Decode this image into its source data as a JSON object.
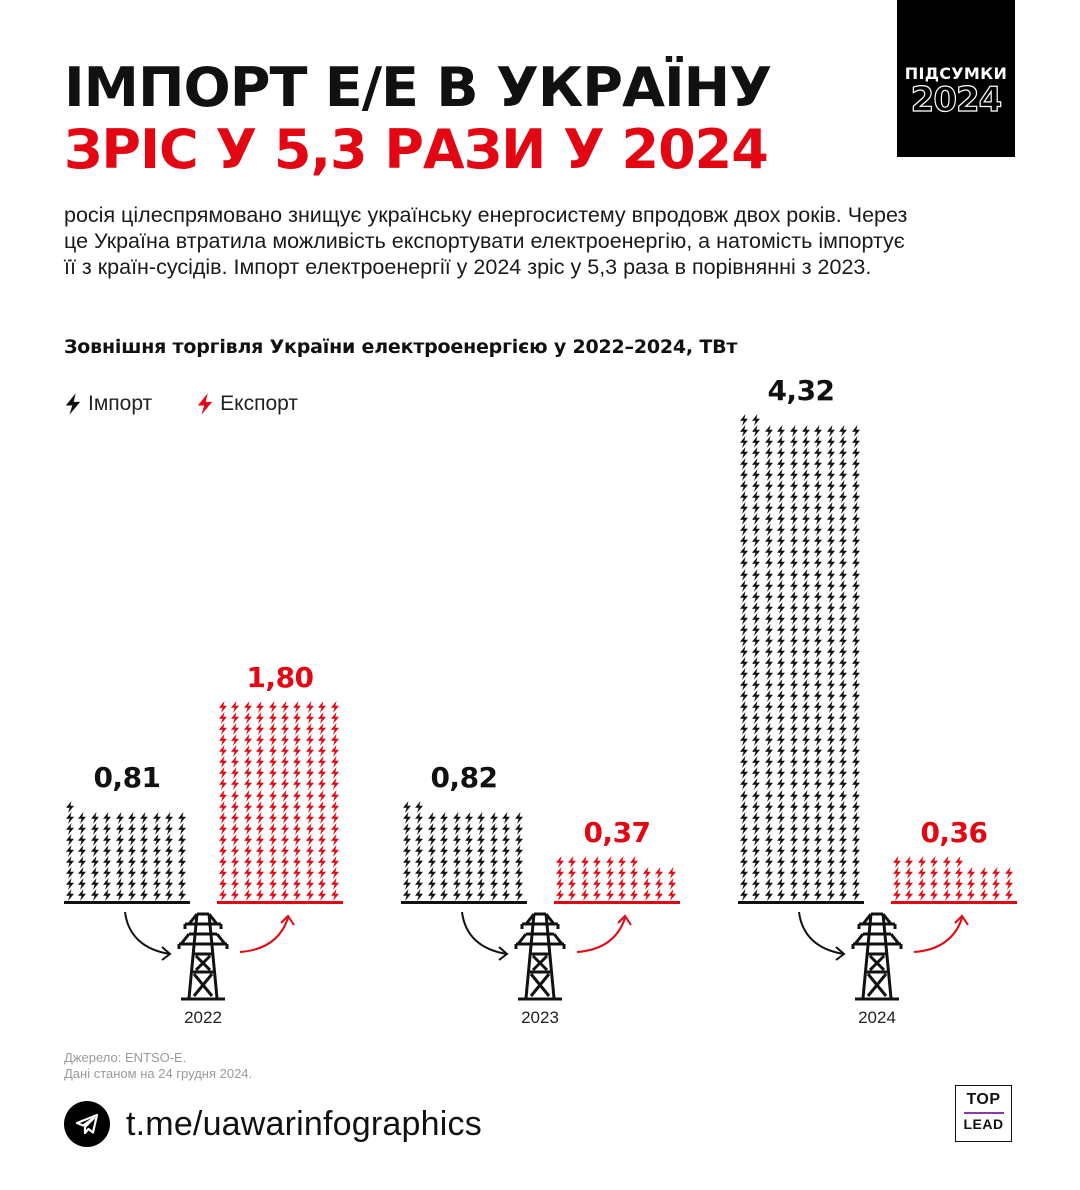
{
  "header": {
    "title_line1": "ІМПОРТ Е/Е В УКРАЇНУ",
    "title_line2": "ЗРІС У 5,3 РАЗИ У 2024",
    "badge_label": "ПІДСУМКИ",
    "badge_year": "2024"
  },
  "description": "росія цілеспрямовано знищує українську енергосистему впродовж двох років. Через це Україна втратила можливість експортувати електроенергію, а натомість імпортує її з країн-сусідів. Імпорт електроенергії у 2024 зріс у 5,3 раза в порівнянні з 2023.",
  "colors": {
    "import": "#111111",
    "export": "#e30613",
    "badge_bg": "#000000"
  },
  "legend": {
    "import_label": "Імпорт",
    "export_label": "Експорт",
    "import_icon": "lightning-bolt-icon",
    "export_icon": "lightning-bolt-icon"
  },
  "chart_data": {
    "type": "bar",
    "title": "Зовнішня торгівля України електроенергією у 2022–2024, ТВт",
    "xlabel": "",
    "ylabel": "ТВт",
    "categories": [
      "2022",
      "2023",
      "2024"
    ],
    "series": [
      {
        "name": "Імпорт",
        "values": [
          0.81,
          0.82,
          4.32
        ],
        "labels": [
          "0,81",
          "0,82",
          "4,32"
        ],
        "color": "#111111"
      },
      {
        "name": "Експорт",
        "values": [
          1.8,
          0.37,
          0.36
        ],
        "labels": [
          "1,80",
          "0,37",
          "0,36"
        ],
        "color": "#e30613"
      }
    ],
    "unit_per_icon": 0.01,
    "icons_per_row": 10,
    "grid": false,
    "legend_position": "top-left"
  },
  "footer": {
    "source_line1": "Джерело: ENTSO-E.",
    "source_line2": "Дані станом на 24 грудня 2024.",
    "telegram_url": "t.me/uawarinfographics",
    "logo_top": "TOP",
    "logo_bottom": "LEAD"
  }
}
